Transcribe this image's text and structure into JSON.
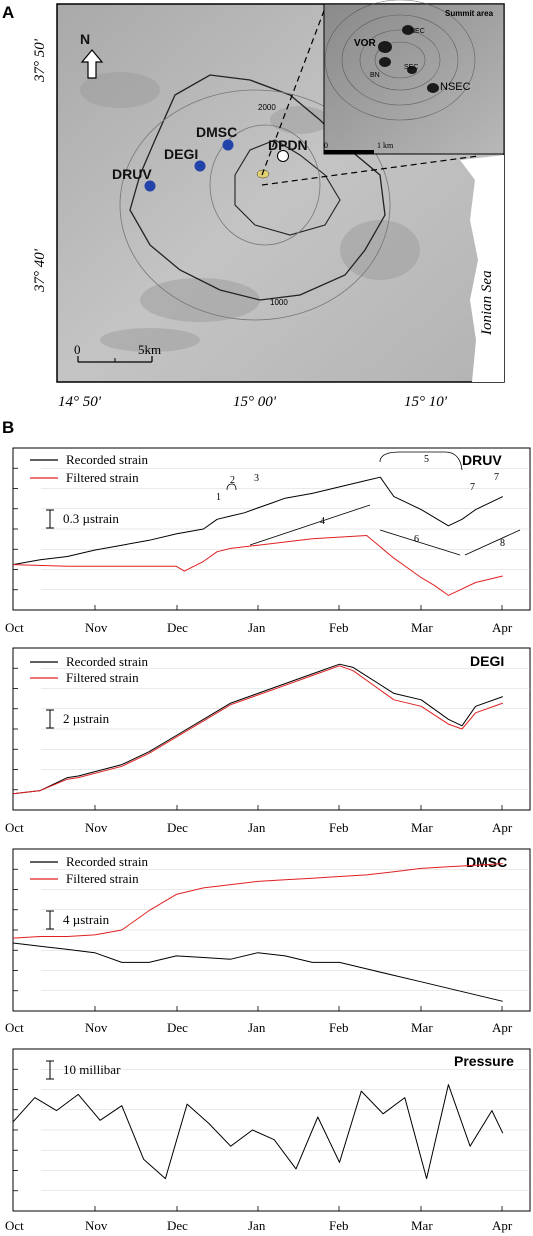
{
  "panels": {
    "a": "A",
    "b": "B"
  },
  "map": {
    "stations": [
      {
        "name": "DRUV",
        "color": "#2244aa"
      },
      {
        "name": "DEGI",
        "color": "#2244aa"
      },
      {
        "name": "DMSC",
        "color": "#2244aa"
      },
      {
        "name": "DPDN",
        "color": "#ffffff"
      }
    ],
    "north": "N",
    "scale_bar": {
      "start": "0",
      "end": "5km"
    },
    "contours": [
      "2000",
      "1000"
    ],
    "sea_label": "Ionian Sea",
    "lat_labels": [
      "37° 50'",
      "37° 40'"
    ],
    "lon_labels": [
      "14° 50'",
      "15° 00'",
      "15° 10'"
    ],
    "inset": {
      "title": "Summit area",
      "craters": [
        "VOR",
        "BN",
        "NEC",
        "SEC",
        "NSEC"
      ],
      "scale_start": "0",
      "scale_end": "1 km"
    }
  },
  "strain_legend": {
    "recorded": "Recorded strain",
    "filtered": "Filtered strain",
    "recorded_color": "#000000",
    "filtered_color": "#e02020"
  },
  "event_labels": [
    "1",
    "2",
    "3",
    "4",
    "5",
    "6",
    "7",
    "7",
    "8"
  ],
  "chart_data": [
    {
      "type": "line",
      "title": "DRUV",
      "x_tick_labels": [
        "Oct",
        "Nov",
        "Dec",
        "Jan",
        "Feb",
        "Mar",
        "Apr"
      ],
      "scale_label": "0.3 µstrain",
      "ylim": [
        0,
        1
      ],
      "series": [
        {
          "name": "Recorded strain",
          "color": "#000000",
          "x": [
            0,
            10,
            20,
            30,
            40,
            50,
            60,
            70,
            75,
            80,
            85,
            90,
            95,
            100,
            110,
            120,
            130,
            135,
            140,
            145,
            150,
            155,
            160,
            165,
            170,
            175,
            180
          ],
          "y": [
            0.28,
            0.31,
            0.33,
            0.37,
            0.4,
            0.43,
            0.47,
            0.5,
            0.56,
            0.58,
            0.6,
            0.63,
            0.66,
            0.69,
            0.72,
            0.76,
            0.8,
            0.82,
            0.7,
            0.66,
            0.62,
            0.57,
            0.52,
            0.56,
            0.62,
            0.66,
            0.7
          ]
        },
        {
          "name": "Filtered strain",
          "color": "#e02020",
          "x": [
            0,
            20,
            40,
            60,
            63,
            70,
            75,
            80,
            90,
            100,
            110,
            120,
            130,
            140,
            145,
            150,
            155,
            160,
            165,
            170,
            180
          ],
          "y": [
            0.28,
            0.27,
            0.27,
            0.27,
            0.24,
            0.3,
            0.36,
            0.38,
            0.4,
            0.42,
            0.44,
            0.45,
            0.46,
            0.32,
            0.26,
            0.2,
            0.15,
            0.09,
            0.13,
            0.17,
            0.21
          ]
        }
      ]
    },
    {
      "type": "line",
      "title": "DEGI",
      "x_tick_labels": [
        "Oct",
        "Nov",
        "Dec",
        "Jan",
        "Feb",
        "Mar",
        "Apr"
      ],
      "scale_label": "2 µstrain",
      "ylim": [
        0,
        1
      ],
      "series": [
        {
          "name": "Recorded strain",
          "color": "#000000",
          "x": [
            0,
            10,
            20,
            24,
            40,
            50,
            60,
            70,
            80,
            90,
            100,
            110,
            120,
            125,
            140,
            150,
            160,
            165,
            170,
            180
          ],
          "y": [
            0.1,
            0.12,
            0.2,
            0.21,
            0.28,
            0.36,
            0.46,
            0.56,
            0.66,
            0.72,
            0.78,
            0.84,
            0.9,
            0.88,
            0.72,
            0.68,
            0.56,
            0.52,
            0.64,
            0.7
          ]
        },
        {
          "name": "Filtered strain",
          "color": "#e02020",
          "x": [
            0,
            10,
            20,
            24,
            40,
            50,
            60,
            70,
            80,
            90,
            100,
            110,
            120,
            125,
            140,
            150,
            160,
            165,
            170,
            180
          ],
          "y": [
            0.1,
            0.12,
            0.19,
            0.2,
            0.27,
            0.35,
            0.45,
            0.55,
            0.65,
            0.71,
            0.77,
            0.83,
            0.89,
            0.86,
            0.68,
            0.64,
            0.53,
            0.5,
            0.6,
            0.66
          ]
        }
      ]
    },
    {
      "type": "line",
      "title": "DMSC",
      "x_tick_labels": [
        "Oct",
        "Nov",
        "Dec",
        "Jan",
        "Feb",
        "Mar",
        "Apr"
      ],
      "scale_label": "4 µstrain",
      "ylim": [
        0,
        1
      ],
      "series": [
        {
          "name": "Recorded strain",
          "color": "#000000",
          "x": [
            0,
            10,
            20,
            30,
            40,
            50,
            60,
            70,
            80,
            90,
            100,
            110,
            120,
            130,
            140,
            150,
            160,
            170,
            180
          ],
          "y": [
            0.42,
            0.4,
            0.38,
            0.36,
            0.3,
            0.3,
            0.34,
            0.33,
            0.32,
            0.36,
            0.34,
            0.3,
            0.3,
            0.26,
            0.22,
            0.18,
            0.14,
            0.1,
            0.06
          ]
        },
        {
          "name": "Filtered strain",
          "color": "#e02020",
          "x": [
            0,
            10,
            20,
            30,
            40,
            50,
            60,
            70,
            80,
            90,
            100,
            110,
            120,
            130,
            140,
            150,
            160,
            170,
            180
          ],
          "y": [
            0.45,
            0.46,
            0.46,
            0.47,
            0.5,
            0.62,
            0.72,
            0.76,
            0.78,
            0.8,
            0.81,
            0.82,
            0.83,
            0.84,
            0.86,
            0.88,
            0.89,
            0.9,
            0.91
          ]
        }
      ]
    },
    {
      "type": "line",
      "title": "Pressure",
      "x_tick_labels": [
        "Oct",
        "Nov",
        "Dec",
        "Jan",
        "Feb",
        "Mar",
        "Apr"
      ],
      "scale_label": "10 millibar",
      "ylim": [
        0,
        1
      ],
      "series": [
        {
          "name": "Pressure",
          "color": "#000000",
          "x": [
            0,
            8,
            16,
            24,
            32,
            40,
            48,
            56,
            64,
            72,
            80,
            88,
            96,
            104,
            112,
            120,
            128,
            136,
            144,
            152,
            160,
            168,
            176,
            180
          ],
          "y": [
            0.55,
            0.7,
            0.62,
            0.72,
            0.56,
            0.65,
            0.32,
            0.2,
            0.66,
            0.54,
            0.4,
            0.5,
            0.44,
            0.26,
            0.58,
            0.3,
            0.74,
            0.6,
            0.7,
            0.2,
            0.78,
            0.4,
            0.62,
            0.48
          ]
        }
      ]
    }
  ]
}
